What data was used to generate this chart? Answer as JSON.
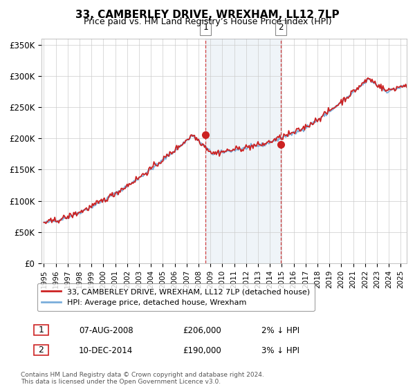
{
  "title": "33, CAMBERLEY DRIVE, WREXHAM, LL12 7LP",
  "subtitle": "Price paid vs. HM Land Registry’s House Price Index (HPI)",
  "ylabel_ticks": [
    "£0",
    "£50K",
    "£100K",
    "£150K",
    "£200K",
    "£250K",
    "£300K",
    "£350K"
  ],
  "ytick_values": [
    0,
    50000,
    100000,
    150000,
    200000,
    250000,
    300000,
    350000
  ],
  "ylim": [
    0,
    360000
  ],
  "xlim_start": 1994.8,
  "xlim_end": 2025.5,
  "hpi_color": "#7aaedb",
  "sale_color": "#cc2222",
  "sale1_date": 2008.58,
  "sale1_price": 206000,
  "sale2_date": 2014.92,
  "sale2_price": 190000,
  "shade_start": 2008.58,
  "shade_end": 2014.92,
  "background_color": "#ffffff",
  "grid_color": "#cccccc",
  "legend_sale_text": "33, CAMBERLEY DRIVE, WREXHAM, LL12 7LP (detached house)",
  "legend_hpi_text": "HPI: Average price, detached house, Wrexham",
  "footnote": "Contains HM Land Registry data © Crown copyright and database right 2024.\nThis data is licensed under the Open Government Licence v3.0.",
  "table": [
    {
      "num": "1",
      "date": "07-AUG-2008",
      "price": "£206,000",
      "hpi": "2% ↓ HPI"
    },
    {
      "num": "2",
      "date": "10-DEC-2014",
      "price": "£190,000",
      "hpi": "3% ↓ HPI"
    }
  ]
}
